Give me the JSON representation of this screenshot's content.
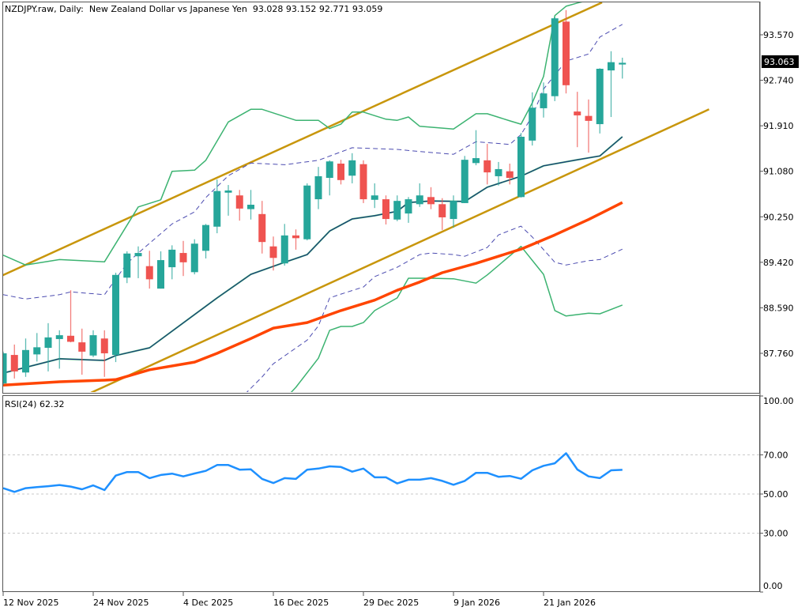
{
  "header": {
    "symbol": "NZDJPY.raw, Daily:",
    "description": "New Zealand Dollar vs Japanese Yen",
    "ohlc": "93.028 93.152 92.771 93.059"
  },
  "current_price_label": "93.063",
  "colors": {
    "bull": "#26a69a",
    "bear": "#ef5350",
    "bollinger": "#3cb371",
    "bollinger_mid": "#1a2a7a",
    "envelope": "#4b4bb0",
    "moving_average": "#ff4500",
    "channel": "#c8960c",
    "rsi": "#1e90ff"
  },
  "chart_data": [
    {
      "type": "candlestick",
      "title": "NZDJPY.raw, Daily",
      "y_ticks": [
        "93.570",
        "92.740",
        "91.910",
        "91.080",
        "90.250",
        "89.420",
        "88.590",
        "87.760"
      ],
      "x_ticks": [
        {
          "bar": 0,
          "label": "12 Nov 2025"
        },
        {
          "bar": 8,
          "label": "24 Nov 2025"
        },
        {
          "bar": 16,
          "label": "4 Dec 2025"
        },
        {
          "bar": 24,
          "label": "16 Dec 2025"
        },
        {
          "bar": 32,
          "label": "29 Dec 2025"
        },
        {
          "bar": 40,
          "label": "9 Jan 2026"
        },
        {
          "bar": 48,
          "label": "21 Jan 2026"
        }
      ],
      "ylim": [
        86.5,
        94.2
      ],
      "ohlc": [
        [
          87.21,
          87.79,
          87.18,
          87.76
        ],
        [
          87.73,
          87.92,
          87.3,
          87.43
        ],
        [
          87.41,
          88.03,
          87.33,
          87.82
        ],
        [
          87.74,
          88.13,
          87.61,
          87.87
        ],
        [
          87.86,
          88.31,
          87.43,
          88.05
        ],
        [
          88.02,
          88.18,
          87.48,
          88.09
        ],
        [
          88.08,
          88.91,
          87.96,
          87.97
        ],
        [
          87.96,
          88.21,
          87.37,
          87.79
        ],
        [
          87.72,
          88.18,
          87.69,
          88.09
        ],
        [
          88.03,
          88.18,
          87.33,
          87.76
        ],
        [
          87.73,
          89.23,
          87.6,
          89.19
        ],
        [
          89.14,
          89.62,
          89.04,
          89.58
        ],
        [
          89.53,
          89.71,
          89.13,
          89.59
        ],
        [
          89.35,
          89.63,
          88.94,
          89.11
        ],
        [
          88.94,
          89.62,
          88.94,
          89.46
        ],
        [
          89.33,
          89.73,
          89.11,
          89.65
        ],
        [
          89.59,
          89.81,
          89.17,
          89.42
        ],
        [
          89.24,
          89.84,
          89.2,
          89.76
        ],
        [
          89.63,
          90.12,
          89.49,
          90.1
        ],
        [
          90.07,
          90.93,
          89.95,
          90.72
        ],
        [
          90.69,
          90.83,
          90.27,
          90.73
        ],
        [
          90.64,
          90.74,
          90.18,
          90.4
        ],
        [
          90.39,
          90.74,
          90.2,
          90.47
        ],
        [
          90.3,
          90.54,
          89.58,
          89.79
        ],
        [
          89.71,
          89.89,
          89.27,
          89.5
        ],
        [
          89.4,
          90.12,
          89.36,
          89.91
        ],
        [
          89.91,
          90.02,
          89.65,
          89.86
        ],
        [
          89.84,
          90.86,
          89.82,
          90.82
        ],
        [
          90.57,
          91.16,
          90.39,
          90.99
        ],
        [
          90.96,
          91.28,
          90.64,
          91.26
        ],
        [
          91.22,
          91.29,
          90.84,
          90.92
        ],
        [
          91.0,
          91.41,
          90.86,
          91.28
        ],
        [
          91.21,
          91.28,
          90.5,
          90.57
        ],
        [
          90.56,
          90.86,
          90.41,
          90.64
        ],
        [
          90.57,
          90.64,
          90.11,
          90.21
        ],
        [
          90.2,
          90.64,
          90.17,
          90.54
        ],
        [
          90.31,
          90.61,
          90.14,
          90.57
        ],
        [
          90.48,
          90.86,
          90.43,
          90.64
        ],
        [
          90.61,
          90.79,
          90.39,
          90.48
        ],
        [
          90.48,
          90.59,
          90.01,
          90.24
        ],
        [
          90.21,
          90.64,
          90.05,
          90.54
        ],
        [
          90.5,
          91.36,
          90.5,
          91.29
        ],
        [
          91.23,
          91.83,
          91.19,
          91.32
        ],
        [
          91.28,
          91.58,
          90.84,
          91.06
        ],
        [
          90.99,
          91.25,
          90.82,
          91.12
        ],
        [
          91.08,
          91.22,
          90.84,
          90.96
        ],
        [
          90.61,
          91.78,
          90.6,
          91.71
        ],
        [
          91.64,
          92.52,
          91.55,
          92.24
        ],
        [
          92.23,
          92.7,
          92.06,
          92.5
        ],
        [
          92.45,
          93.89,
          92.36,
          93.87
        ],
        [
          93.81,
          94.02,
          92.5,
          92.65
        ],
        [
          92.17,
          92.53,
          91.52,
          92.1
        ],
        [
          92.09,
          92.39,
          91.42,
          92.0
        ],
        [
          91.94,
          92.96,
          91.77,
          92.95
        ],
        [
          92.92,
          93.27,
          92.07,
          93.07
        ],
        [
          93.028,
          93.152,
          92.771,
          93.059
        ]
      ],
      "indicators": {
        "bollinger_upper": [
          [
            0,
            89.55
          ],
          [
            2,
            89.37
          ],
          [
            5,
            89.47
          ],
          [
            9,
            89.43
          ],
          [
            12,
            90.43
          ],
          [
            14,
            90.56
          ],
          [
            15,
            91.08
          ],
          [
            17,
            91.1
          ],
          [
            18,
            91.28
          ],
          [
            20,
            91.98
          ],
          [
            22,
            92.21
          ],
          [
            23,
            92.21
          ],
          [
            26,
            92.01
          ],
          [
            28,
            92.01
          ],
          [
            29,
            91.86
          ],
          [
            30,
            91.94
          ],
          [
            31,
            92.16
          ],
          [
            32,
            92.16
          ],
          [
            34,
            92.03
          ],
          [
            35,
            92.01
          ],
          [
            36,
            92.07
          ],
          [
            37,
            91.9
          ],
          [
            40,
            91.85
          ],
          [
            42,
            92.13
          ],
          [
            43,
            92.13
          ],
          [
            45,
            92.0
          ],
          [
            46,
            91.94
          ],
          [
            47,
            92.33
          ],
          [
            48,
            92.81
          ],
          [
            49,
            93.92
          ],
          [
            50,
            94.09
          ],
          [
            51,
            94.15
          ],
          [
            52,
            94.2
          ]
        ],
        "bollinger_middle": [
          [
            0,
            87.4
          ],
          [
            5,
            87.66
          ],
          [
            9,
            87.63
          ],
          [
            10,
            87.72
          ],
          [
            13,
            87.86
          ],
          [
            19,
            88.77
          ],
          [
            22,
            89.2
          ],
          [
            25,
            89.42
          ],
          [
            27,
            89.56
          ],
          [
            29,
            89.99
          ],
          [
            31,
            90.21
          ],
          [
            33,
            90.27
          ],
          [
            35,
            90.35
          ],
          [
            36,
            90.51
          ],
          [
            38,
            90.54
          ],
          [
            41,
            90.53
          ],
          [
            43,
            90.79
          ],
          [
            46,
            90.99
          ],
          [
            48,
            91.18
          ],
          [
            51,
            91.29
          ],
          [
            53,
            91.36
          ],
          [
            55,
            91.71
          ]
        ],
        "bollinger_lower": [
          [
            20,
            85.9
          ],
          [
            25,
            86.92
          ],
          [
            26,
            87.14
          ],
          [
            28,
            87.67
          ],
          [
            29,
            88.18
          ],
          [
            30,
            88.25
          ],
          [
            31,
            88.25
          ],
          [
            32,
            88.32
          ],
          [
            33,
            88.54
          ],
          [
            35,
            88.77
          ],
          [
            36,
            89.13
          ],
          [
            38,
            89.13
          ],
          [
            40,
            89.12
          ],
          [
            42,
            89.04
          ],
          [
            43,
            89.19
          ],
          [
            46,
            89.71
          ],
          [
            48,
            89.2
          ],
          [
            49,
            88.54
          ],
          [
            50,
            88.44
          ],
          [
            52,
            88.49
          ],
          [
            53,
            88.48
          ],
          [
            55,
            88.64
          ]
        ],
        "envelope_upper": [
          [
            0,
            88.83
          ],
          [
            2,
            88.75
          ],
          [
            5,
            88.83
          ],
          [
            6,
            88.88
          ],
          [
            9,
            88.83
          ],
          [
            11,
            89.4
          ],
          [
            12,
            89.59
          ],
          [
            15,
            90.12
          ],
          [
            17,
            90.34
          ],
          [
            18,
            90.6
          ],
          [
            20,
            91.0
          ],
          [
            22,
            91.23
          ],
          [
            25,
            91.2
          ],
          [
            28,
            91.28
          ],
          [
            31,
            91.51
          ],
          [
            35,
            91.48
          ],
          [
            37,
            91.44
          ],
          [
            40,
            91.39
          ],
          [
            42,
            91.62
          ],
          [
            45,
            91.57
          ],
          [
            46,
            91.75
          ],
          [
            47,
            92.09
          ],
          [
            48,
            92.58
          ],
          [
            50,
            93.09
          ],
          [
            52,
            93.22
          ],
          [
            53,
            93.53
          ],
          [
            55,
            93.76
          ]
        ],
        "envelope_lower": [
          [
            20,
            86.71
          ],
          [
            23,
            87.33
          ],
          [
            24,
            87.57
          ],
          [
            27,
            88.0
          ],
          [
            28,
            88.26
          ],
          [
            29,
            88.77
          ],
          [
            30,
            88.84
          ],
          [
            32,
            88.97
          ],
          [
            33,
            89.16
          ],
          [
            35,
            89.33
          ],
          [
            37,
            89.56
          ],
          [
            38,
            89.59
          ],
          [
            40,
            89.56
          ],
          [
            41,
            89.53
          ],
          [
            43,
            89.69
          ],
          [
            44,
            89.92
          ],
          [
            46,
            90.08
          ],
          [
            47,
            89.88
          ],
          [
            49,
            89.42
          ],
          [
            50,
            89.37
          ],
          [
            52,
            89.45
          ],
          [
            53,
            89.47
          ],
          [
            55,
            89.66
          ]
        ],
        "moving_average": [
          [
            0,
            87.18
          ],
          [
            5,
            87.24
          ],
          [
            9,
            87.27
          ],
          [
            10,
            87.28
          ],
          [
            13,
            87.46
          ],
          [
            17,
            87.6
          ],
          [
            19,
            87.76
          ],
          [
            22,
            88.03
          ],
          [
            24,
            88.22
          ],
          [
            27,
            88.32
          ],
          [
            30,
            88.54
          ],
          [
            33,
            88.73
          ],
          [
            35,
            88.91
          ],
          [
            37,
            89.06
          ],
          [
            39,
            89.23
          ],
          [
            42,
            89.4
          ],
          [
            46,
            89.66
          ],
          [
            49,
            89.92
          ],
          [
            52,
            90.2
          ],
          [
            55,
            90.51
          ]
        ],
        "channel_upper": [
          [
            -0.3,
            89.16
          ],
          [
            53.2,
            94.16
          ]
        ],
        "channel_lower": [
          [
            7.8,
            87.04
          ],
          [
            62.7,
            92.21
          ]
        ]
      }
    },
    {
      "type": "line",
      "title": "RSI(24)",
      "last_value": "62.32",
      "y_ticks": [
        "100.00",
        "70.00",
        "50.00",
        "30.00",
        "0.00"
      ],
      "ylim": [
        0,
        100
      ],
      "levels": [
        70,
        50,
        30
      ],
      "values": [
        53.0,
        51.1,
        53.0,
        53.5,
        54.0,
        54.6,
        53.8,
        52.4,
        54.4,
        52.0,
        59.4,
        61.2,
        61.2,
        58.1,
        59.7,
        60.4,
        59.0,
        60.5,
        61.8,
        64.8,
        64.8,
        62.4,
        62.6,
        57.7,
        55.6,
        58.1,
        57.7,
        62.4,
        63.0,
        64.1,
        63.8,
        61.4,
        63.0,
        58.5,
        58.5,
        55.4,
        57.3,
        57.3,
        58.1,
        56.7,
        54.7,
        56.7,
        60.8,
        60.8,
        58.8,
        59.2,
        57.8,
        62.1,
        64.4,
        65.7,
        70.8,
        62.5,
        59.0,
        58.1,
        62.1,
        62.32
      ]
    }
  ]
}
